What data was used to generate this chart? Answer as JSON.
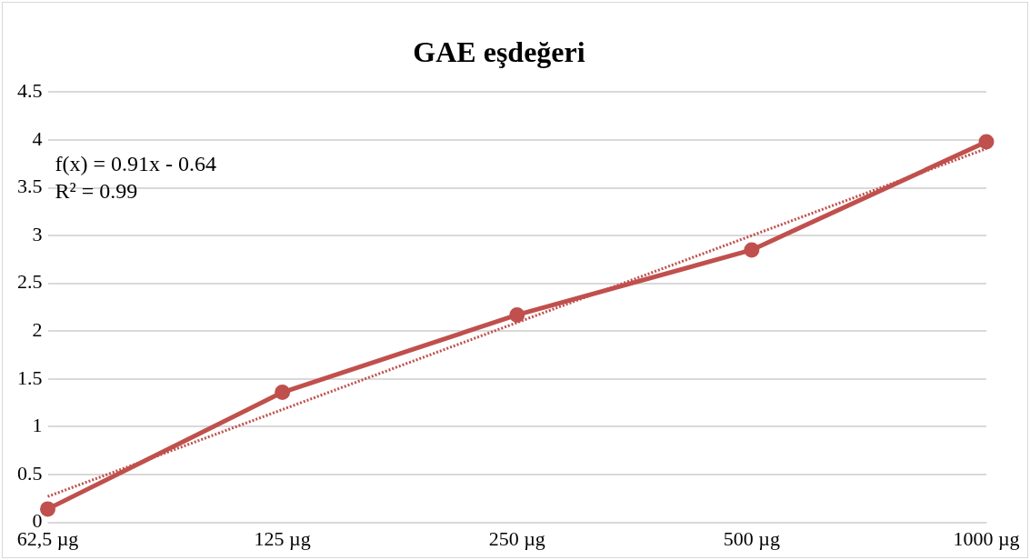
{
  "chart_data": {
    "type": "line",
    "title": "GAE eşdeğeri",
    "categories": [
      "62,5 µg",
      "125 µg",
      "250 µg",
      "500 µg",
      "1000 µg"
    ],
    "series": [
      {
        "color": "#c0504d",
        "values": [
          0.14,
          1.36,
          2.17,
          2.85,
          3.98
        ],
        "marker": "circle",
        "line_style": "solid"
      },
      {
        "type": "line",
        "color": "#c0504d",
        "values": [
          0.27,
          1.18,
          2.09,
          3.0,
          3.91
        ],
        "marker": "none",
        "line_style": "dotted"
      }
    ],
    "ylim": [
      0,
      4.5
    ],
    "yticks": [
      0,
      0.5,
      1,
      1.5,
      2,
      2.5,
      3,
      3.5,
      4,
      4.5
    ],
    "grid": "y",
    "legend": false,
    "annotations": [
      "f(x) = 0.91x - 0.64",
      "R² = 0.99"
    ]
  }
}
